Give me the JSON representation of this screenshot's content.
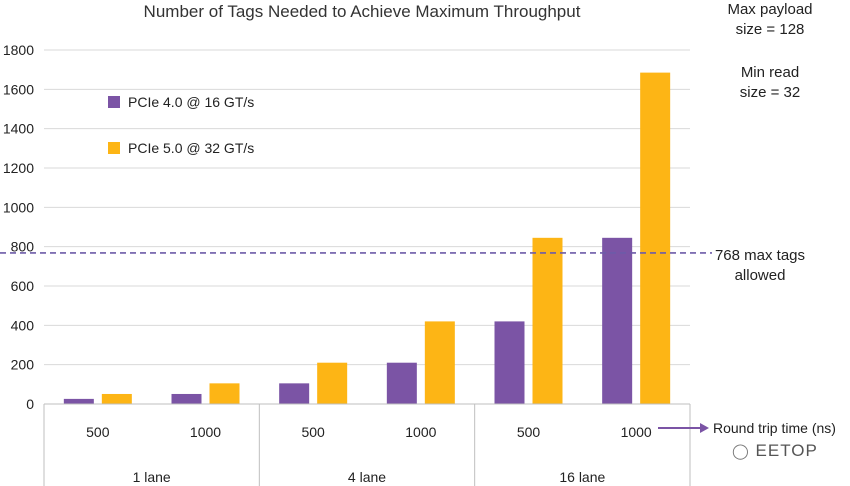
{
  "chart_data": {
    "type": "bar",
    "title": "Number of Tags Needed to Achieve Maximum Throughput",
    "ylim": [
      0,
      1800
    ],
    "yticks": [
      0,
      200,
      400,
      600,
      800,
      1000,
      1200,
      1400,
      1600,
      1800
    ],
    "categories": [
      "500",
      "1000",
      "500",
      "1000",
      "500",
      "1000"
    ],
    "groups": [
      {
        "label": "1 lane",
        "span": [
          0,
          1
        ]
      },
      {
        "label": "4 lane",
        "span": [
          2,
          3
        ]
      },
      {
        "label": "16 lane",
        "span": [
          4,
          5
        ]
      }
    ],
    "series": [
      {
        "name": "PCIe 4.0 @ 16 GT/s",
        "color": "#7B54A5",
        "values": [
          26,
          51,
          105,
          210,
          420,
          845
        ]
      },
      {
        "name": "PCIe 5.0 @ 32 GT/s",
        "color": "#FDB515",
        "values": [
          51,
          105,
          210,
          420,
          845,
          1685
        ]
      }
    ],
    "reference_line": {
      "value": 768,
      "color": "#6D5BA8",
      "label_line1": "768 max tags",
      "label_line2": "allowed"
    },
    "x_axis_note": "Round trip time (ns)",
    "grid": true,
    "legend_position": "top-left"
  },
  "notes": {
    "payload_line1": "Max payload",
    "payload_line2": "size = 128",
    "read_line1": "Min read",
    "read_line2": "size = 32"
  },
  "watermark": "EETOP",
  "colors": {
    "grid": "#D9D9D9",
    "axis": "#BFBFBF",
    "arrow": "#7B54A5"
  }
}
